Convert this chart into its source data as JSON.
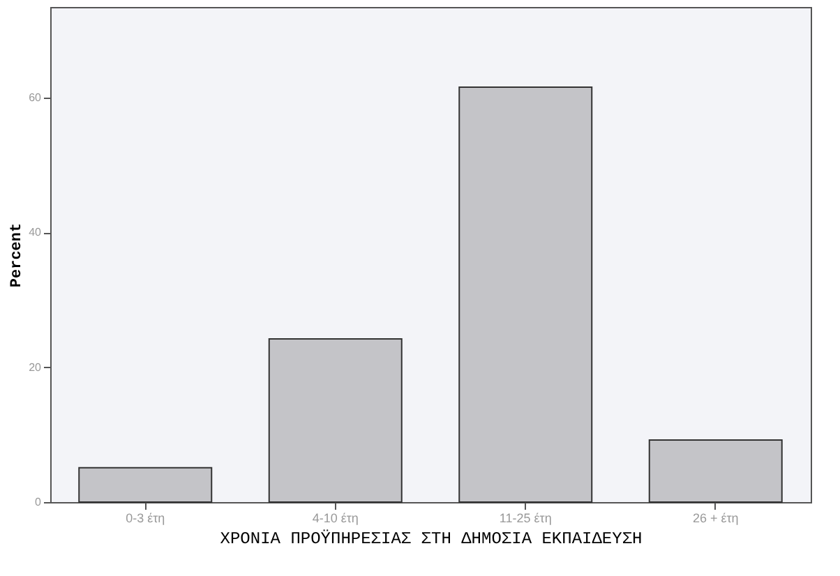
{
  "chart_data": {
    "type": "bar",
    "xlabel": "ΧΡΟΝΙΑ   ΠΡΟΫΠΗΡΕΣΙΑΣ   ΣΤΗ   ΔΗΜΟΣΙΑ   ΕΚΠΑΙΔΕΥΣΗ",
    "ylabel": "Percent",
    "categories": [
      "0-3 έτη",
      "4-10 έτη",
      "11-25 έτη",
      "26 + έτη"
    ],
    "values": [
      5.1,
      24.2,
      61.5,
      9.2
    ],
    "color": "#c4c4c8",
    "ylim": [
      0,
      73.4
    ],
    "yticks": [
      0,
      20,
      40,
      60
    ],
    "grid": false
  }
}
